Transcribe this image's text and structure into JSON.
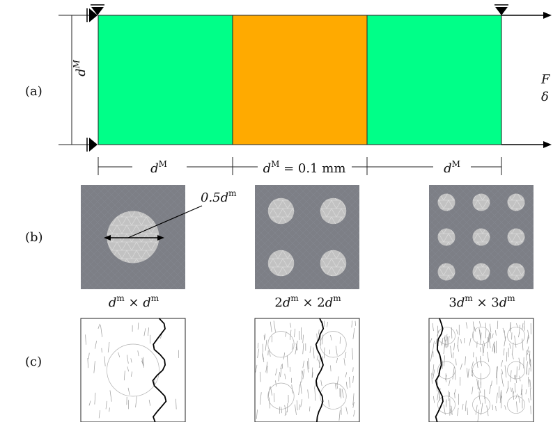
{
  "colors": {
    "outer_block": "#00ff88",
    "center_block": "#ffaa00",
    "micro_bg": "#7d7f86",
    "inclusion": "#c2c2c2",
    "crack_main": "#000000",
    "crack_minor": "#9a9a9a"
  },
  "panel_labels": [
    "(a)",
    "(b)",
    "(c)"
  ],
  "panel_a": {
    "left_dim_label": "d",
    "left_dim_sup": "M",
    "load_force": "F",
    "load_disp": "δ",
    "bottom_dims": [
      {
        "text": "d",
        "sup": "M",
        "suffix": ""
      },
      {
        "text": "d",
        "sup": "M",
        "suffix": " = 0.1 mm"
      },
      {
        "text": "d",
        "sup": "M",
        "suffix": ""
      }
    ]
  },
  "panel_b": {
    "diameter_label": "0.5d",
    "diameter_sup": "m",
    "captions": [
      {
        "a": "",
        "b": "d",
        "bs": "m",
        "mid": " × ",
        "c": "d",
        "cs": "m"
      },
      {
        "a": "2",
        "b": "d",
        "bs": "m",
        "mid": " × 2",
        "c": "d",
        "cs": "m"
      },
      {
        "a": "3",
        "b": "d",
        "bs": "m",
        "mid": " × 3",
        "c": "d",
        "cs": "m"
      }
    ],
    "grids": [
      1,
      2,
      3
    ]
  },
  "panel_c": {
    "grids": [
      1,
      2,
      3
    ]
  }
}
